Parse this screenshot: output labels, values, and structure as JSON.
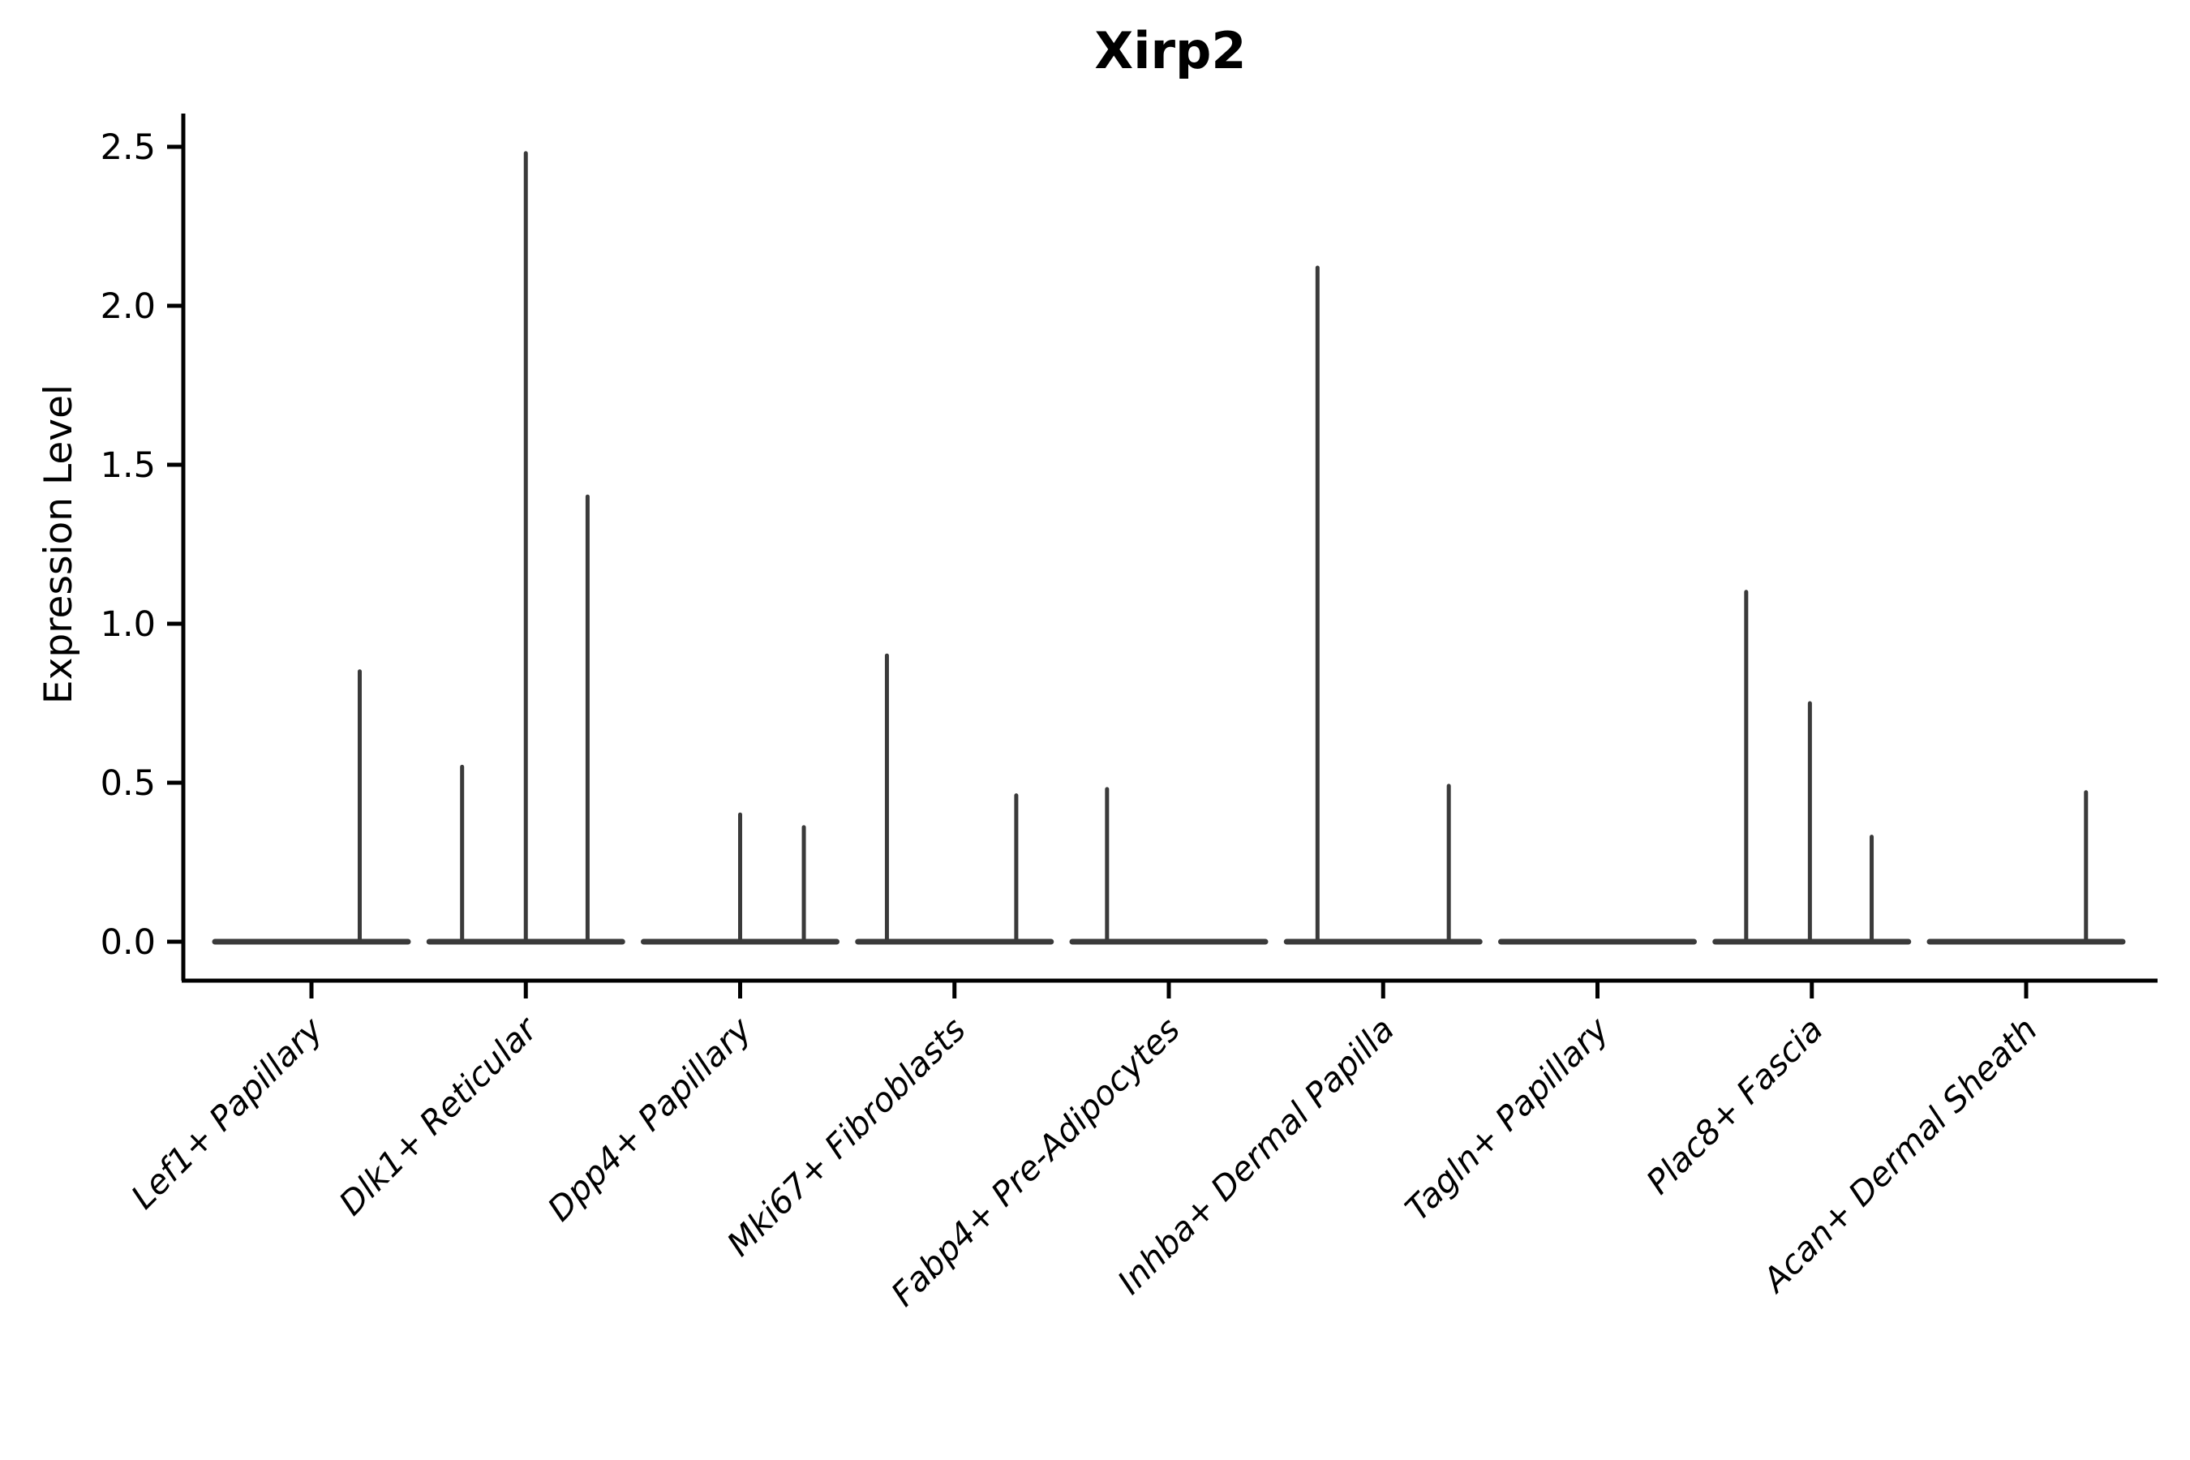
{
  "chart_data": {
    "type": "violin",
    "title": "Xirp2",
    "ylabel": "Expression Level",
    "xlabel": "",
    "grid": false,
    "legend": "none",
    "yticks": [
      "0.0",
      "0.5",
      "1.0",
      "1.5",
      "2.0",
      "2.5"
    ],
    "ytick_values": [
      0.0,
      0.5,
      1.0,
      1.5,
      2.0,
      2.5
    ],
    "categories": [
      "Lef1+ Papillary",
      "Dlk1+ Reticular",
      "Dpp4+ Papillary",
      "Mki67+ Fibroblasts",
      "Fabp4+ Pre-Adipocytes",
      "Inhba+ Dermal Papilla",
      "Tagln+ Papillary",
      "Plac8+ Fascia",
      "Acan+ Dermal Sheath"
    ],
    "violins": [
      {
        "category": "Lef1+ Papillary",
        "baseline_value": 0,
        "spikes": [
          {
            "pos": 0.75,
            "value": 0.85
          }
        ]
      },
      {
        "category": "Dlk1+ Reticular",
        "baseline_value": 0,
        "spikes": [
          {
            "pos": 0.17,
            "value": 0.55
          },
          {
            "pos": 0.5,
            "value": 2.48
          },
          {
            "pos": 0.82,
            "value": 1.4
          }
        ]
      },
      {
        "category": "Dpp4+ Papillary",
        "baseline_value": 0,
        "spikes": [
          {
            "pos": 0.5,
            "value": 0.4
          },
          {
            "pos": 0.83,
            "value": 0.36
          }
        ]
      },
      {
        "category": "Mki67+ Fibroblasts",
        "baseline_value": 0,
        "spikes": [
          {
            "pos": 0.15,
            "value": 0.9
          },
          {
            "pos": 0.82,
            "value": 0.46
          }
        ]
      },
      {
        "category": "Fabp4+ Pre-Adipocytes",
        "baseline_value": 0,
        "spikes": [
          {
            "pos": 0.18,
            "value": 0.48
          }
        ]
      },
      {
        "category": "Inhba+ Dermal Papilla",
        "baseline_value": 0,
        "spikes": [
          {
            "pos": 0.16,
            "value": 2.12
          },
          {
            "pos": 0.84,
            "value": 0.49
          }
        ]
      },
      {
        "category": "Tagln+ Papillary",
        "baseline_value": 0,
        "spikes": []
      },
      {
        "category": "Plac8+ Fascia",
        "baseline_value": 0,
        "spikes": [
          {
            "pos": 0.16,
            "value": 1.1
          },
          {
            "pos": 0.49,
            "value": 0.75
          },
          {
            "pos": 0.81,
            "value": 0.33
          }
        ]
      },
      {
        "category": "Acan+ Dermal Sheath",
        "baseline_value": 0,
        "spikes": [
          {
            "pos": 0.81,
            "value": 0.47
          }
        ]
      }
    ],
    "colors": {
      "violin_line": "#3a3a3a",
      "axis": "#000000",
      "text": "#000000",
      "background": "#ffffff"
    }
  }
}
